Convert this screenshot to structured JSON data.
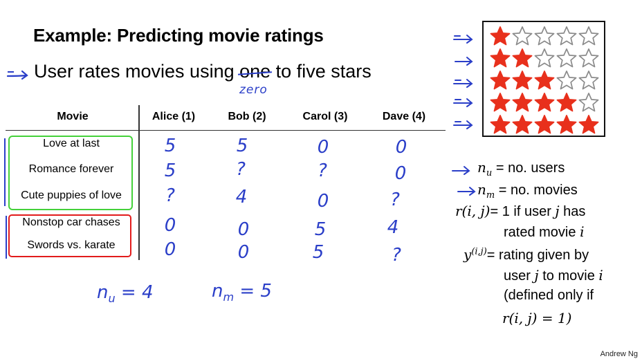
{
  "slide": {
    "title": "Example: Predicting movie ratings",
    "bullet": {
      "text_before": "User rates movies using ",
      "struck_word": "one",
      "text_after": " to five stars",
      "handwritten_correction": "zero"
    },
    "author": "Andrew Ng"
  },
  "table": {
    "headers": [
      "Movie",
      "Alice (1)",
      "Bob (2)",
      "Carol (3)",
      "Dave (4)"
    ],
    "rows": [
      {
        "movie": "Love at last",
        "ratings": [
          "5",
          "5",
          "0",
          "0"
        ]
      },
      {
        "movie": "Romance forever",
        "ratings": [
          "5",
          "?",
          "?",
          "0"
        ]
      },
      {
        "movie": "Cute puppies of love",
        "ratings": [
          "?",
          "4",
          "0",
          "?"
        ]
      },
      {
        "movie": "Nonstop car chases",
        "ratings": [
          "0",
          "0",
          "5",
          "4"
        ]
      },
      {
        "movie": "Swords vs. karate",
        "ratings": [
          "0",
          "0",
          "5",
          "?"
        ]
      }
    ],
    "group_box_colors": {
      "romance": "#44d13a",
      "action": "#e21b1b"
    }
  },
  "handwritten_counts": {
    "nu_label": "n",
    "nu_sub": "u",
    "nu_value": "= 4",
    "nm_label": "n",
    "nm_sub": "m",
    "nm_value": "= 5"
  },
  "star_scale": {
    "rows_filled": [
      1,
      2,
      3,
      4,
      5
    ],
    "total_stars": 5,
    "filled_color": "#e8301c",
    "empty_color": "#8a8a8a"
  },
  "definitions": {
    "nu": {
      "symbol": "n",
      "sub": "u",
      "text": "= no. users"
    },
    "nm": {
      "symbol": "n",
      "sub": "m",
      "text": "= no. movies"
    },
    "r": {
      "symbol": "r(i, j)",
      "line1_a": "= 1 if user ",
      "line1_var": "j",
      "line1_b": " has",
      "line2_a": "rated movie ",
      "line2_var": "i"
    },
    "y": {
      "symbol": "y",
      "sup": "(i,j)",
      "line1": "= rating given by",
      "line2_a": "user ",
      "line2_var": "j",
      "line2_b": " to movie ",
      "line2_var2": "i",
      "line3": "(defined only if",
      "line4": "r(i, j) = 1)"
    }
  },
  "colors": {
    "ink": "#2a3ec8",
    "text": "#000000"
  }
}
